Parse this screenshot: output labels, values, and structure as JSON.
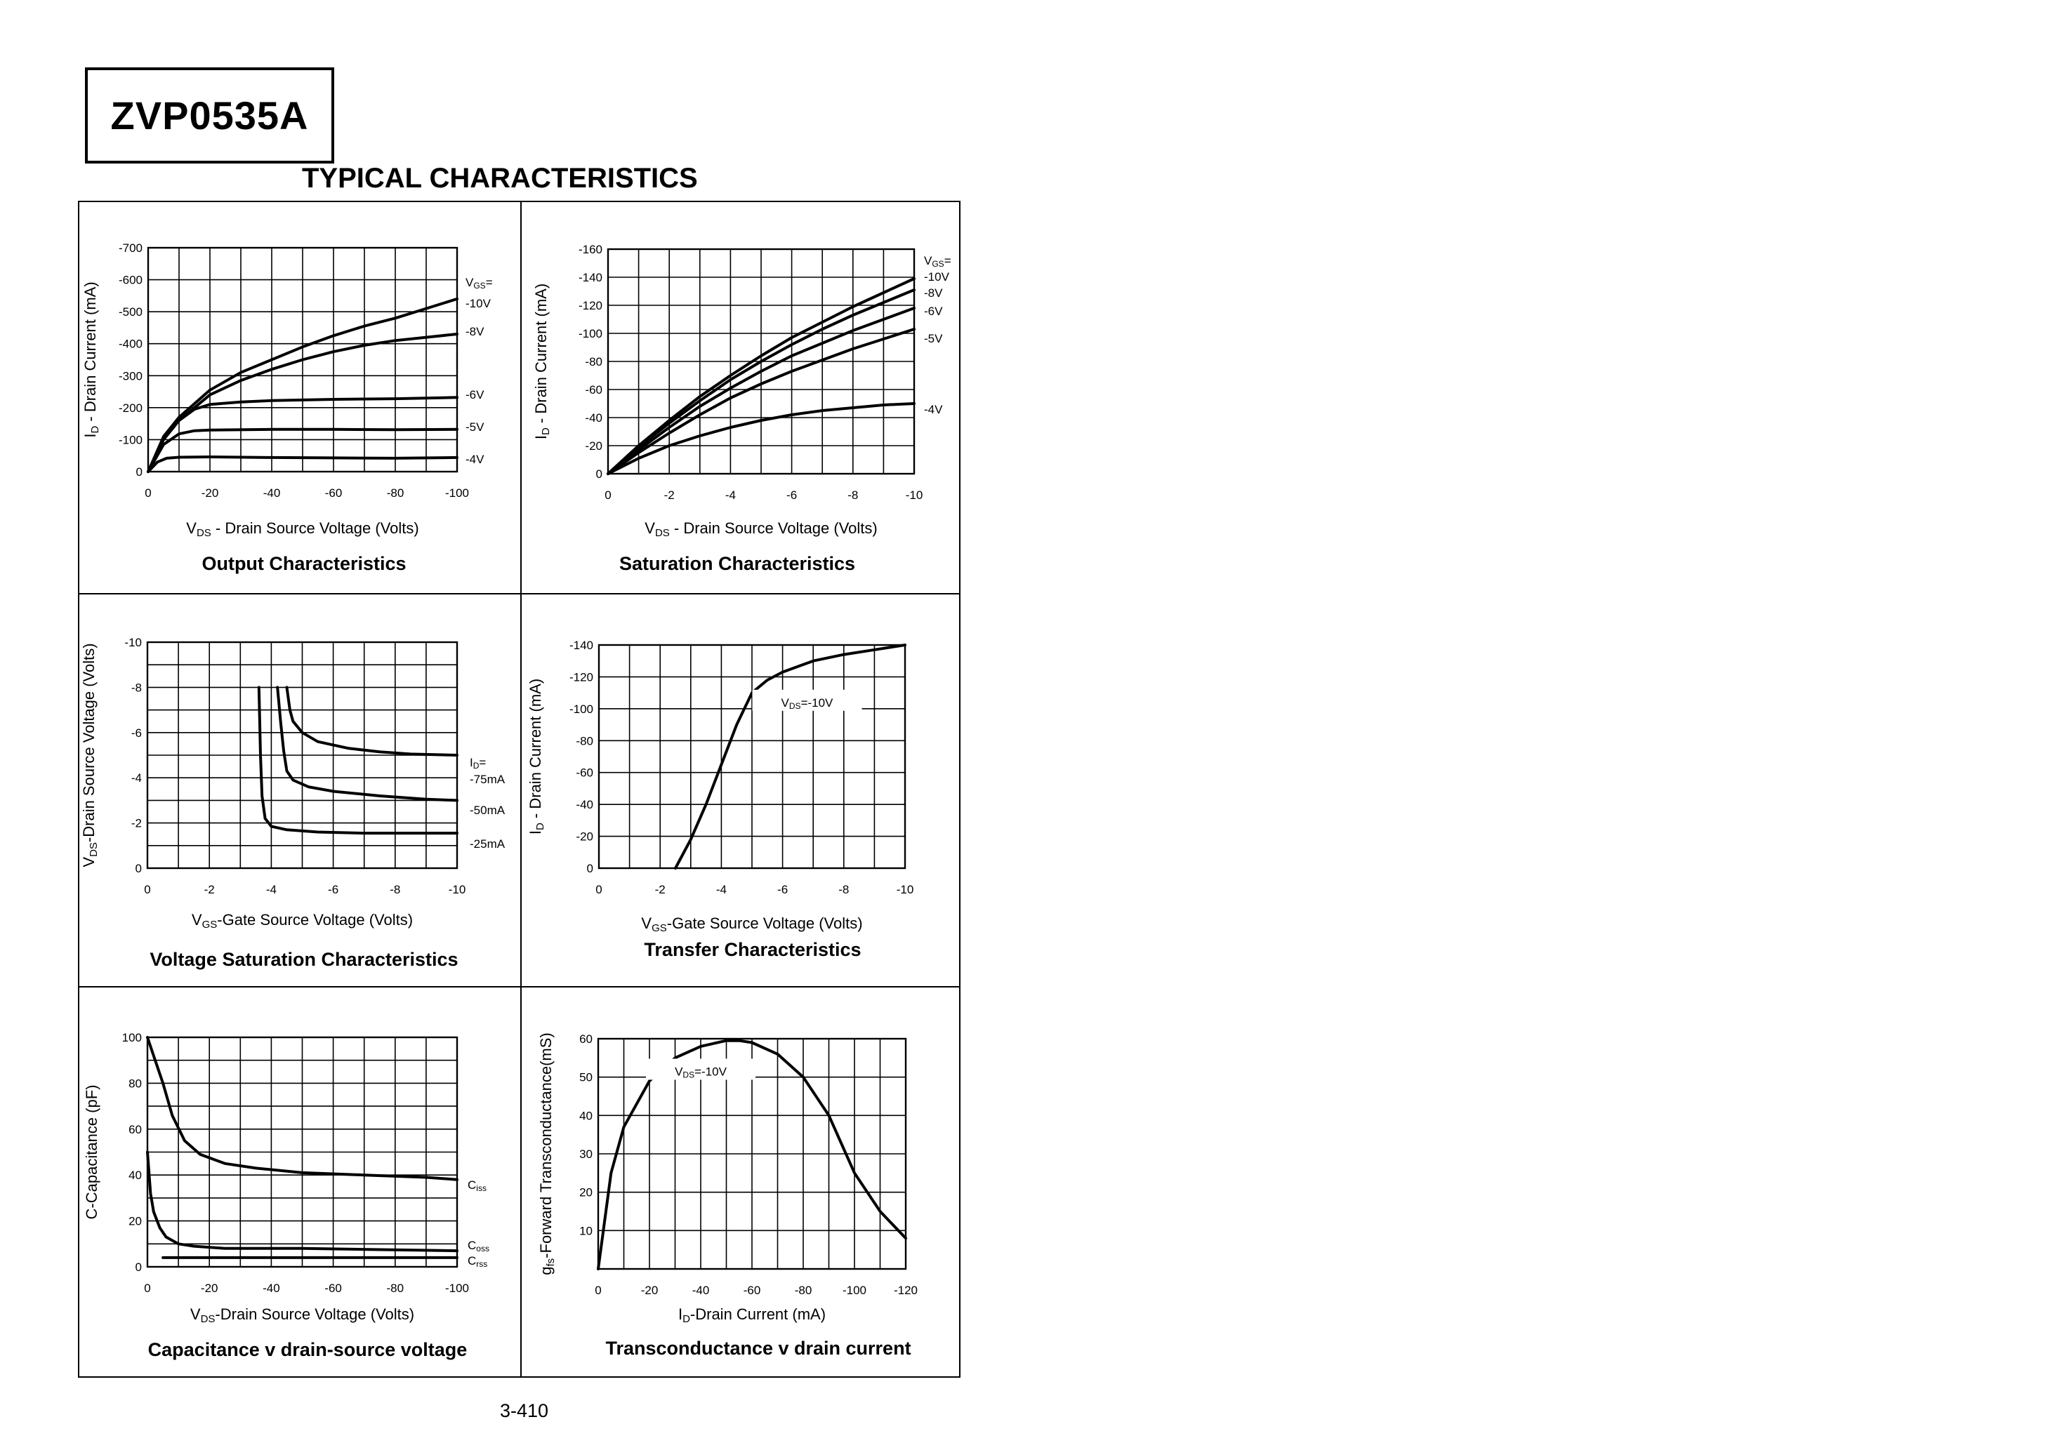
{
  "header": {
    "part_number": "ZVP0535A",
    "heading": "TYPICAL CHARACTERISTICS"
  },
  "footer": {
    "page_number": "3-410"
  },
  "chart_data": [
    {
      "id": "output",
      "type": "line",
      "caption": "Output Characteristics",
      "xlabel": "V",
      "xlabel_sub": "DS",
      "xlabel_rest": " - Drain Source Voltage (Volts)",
      "ylabel": "I",
      "ylabel_sub": "D",
      "ylabel_rest": " - Drain Current (mA)",
      "x_ticks": [
        0,
        -20,
        -40,
        -60,
        -80,
        -100
      ],
      "x_tick_labels": [
        "0",
        "-20",
        "-40",
        "-60",
        "-80",
        "-100"
      ],
      "y_ticks": [
        0,
        -100,
        -200,
        -300,
        -400,
        -500,
        -600,
        -700
      ],
      "y_tick_labels": [
        "0",
        "-100",
        "-200",
        "-300",
        "-400",
        "-500",
        "-600",
        "-700"
      ],
      "xlim": [
        0,
        -100
      ],
      "ylim": [
        0,
        -700
      ],
      "grid_x": 10,
      "grid_y": 7,
      "series": [
        {
          "name": "-10V",
          "x": [
            0,
            -5,
            -10,
            -20,
            -30,
            -40,
            -50,
            -60,
            -70,
            -80,
            -90,
            -100
          ],
          "y": [
            0,
            -110,
            -170,
            -255,
            -310,
            -350,
            -390,
            -425,
            -455,
            -480,
            -510,
            -540
          ]
        },
        {
          "name": "-8V",
          "x": [
            0,
            -5,
            -10,
            -20,
            -30,
            -40,
            -50,
            -60,
            -70,
            -80,
            -90,
            -100
          ],
          "y": [
            0,
            -105,
            -160,
            -240,
            -285,
            -320,
            -350,
            -375,
            -395,
            -410,
            -420,
            -430
          ]
        },
        {
          "name": "-6V",
          "x": [
            0,
            -5,
            -10,
            -15,
            -20,
            -30,
            -40,
            -60,
            -80,
            -100
          ],
          "y": [
            0,
            -100,
            -160,
            -195,
            -210,
            -218,
            -222,
            -226,
            -228,
            -232
          ]
        },
        {
          "name": "-5V",
          "x": [
            0,
            -5,
            -10,
            -15,
            -20,
            -40,
            -60,
            -80,
            -100
          ],
          "y": [
            0,
            -85,
            -118,
            -128,
            -130,
            -132,
            -132,
            -131,
            -132
          ]
        },
        {
          "name": "-4V",
          "x": [
            0,
            -3,
            -6,
            -10,
            -20,
            -40,
            -60,
            -80,
            -100
          ],
          "y": [
            0,
            -30,
            -42,
            -45,
            -46,
            -44,
            -43,
            -42,
            -44
          ]
        }
      ],
      "legend_title": "V",
      "legend_title_sub": "GS",
      "legend_title_rest": "="
    },
    {
      "id": "saturation",
      "type": "line",
      "caption": "Saturation Characteristics",
      "xlabel": "V",
      "xlabel_sub": "DS",
      "xlabel_rest": " - Drain Source Voltage (Volts)",
      "ylabel": "I",
      "ylabel_sub": "D",
      "ylabel_rest": " - Drain Current (mA)",
      "x_ticks": [
        0,
        -2,
        -4,
        -6,
        -8,
        -10
      ],
      "x_tick_labels": [
        "0",
        "-2",
        "-4",
        "-6",
        "-8",
        "-10"
      ],
      "y_ticks": [
        0,
        -20,
        -40,
        -60,
        -80,
        -100,
        -120,
        -140,
        -160
      ],
      "y_tick_labels": [
        "0",
        "-20",
        "-40",
        "-60",
        "-80",
        "-100",
        "-120",
        "-140",
        "-160"
      ],
      "xlim": [
        0,
        -10
      ],
      "ylim": [
        0,
        -160
      ],
      "grid_x": 10,
      "grid_y": 8,
      "series": [
        {
          "name": "-10V",
          "x": [
            0,
            -1,
            -2,
            -3,
            -4,
            -5,
            -6,
            -7,
            -8,
            -9,
            -10
          ],
          "y": [
            0,
            -20,
            -38,
            -55,
            -70,
            -84,
            -97,
            -108,
            -119,
            -129,
            -139
          ]
        },
        {
          "name": "-8V",
          "x": [
            0,
            -1,
            -2,
            -3,
            -4,
            -5,
            -6,
            -7,
            -8,
            -9,
            -10
          ],
          "y": [
            0,
            -19,
            -36,
            -52,
            -67,
            -80,
            -92,
            -103,
            -113,
            -122,
            -131
          ]
        },
        {
          "name": "-6V",
          "x": [
            0,
            -1,
            -2,
            -3,
            -4,
            -5,
            -6,
            -7,
            -8,
            -9,
            -10
          ],
          "y": [
            0,
            -17,
            -33,
            -48,
            -61,
            -73,
            -84,
            -93,
            -102,
            -110,
            -118
          ]
        },
        {
          "name": "-5V",
          "x": [
            0,
            -1,
            -2,
            -3,
            -4,
            -5,
            -6,
            -7,
            -8,
            -9,
            -10
          ],
          "y": [
            0,
            -15,
            -29,
            -42,
            -54,
            -64,
            -73,
            -81,
            -89,
            -96,
            -103
          ]
        },
        {
          "name": "-4V",
          "x": [
            0,
            -1,
            -2,
            -3,
            -4,
            -5,
            -6,
            -7,
            -8,
            -9,
            -10
          ],
          "y": [
            0,
            -11,
            -20,
            -27,
            -33,
            -38,
            -42,
            -45,
            -47,
            -49,
            -50
          ]
        }
      ],
      "legend_title": "V",
      "legend_title_sub": "GS",
      "legend_title_rest": "="
    },
    {
      "id": "voltage-saturation",
      "type": "line",
      "caption": "Voltage Saturation Characteristics",
      "xlabel": "V",
      "xlabel_sub": "GS",
      "xlabel_rest": "-Gate Source Voltage  (Volts)",
      "ylabel": "V",
      "ylabel_sub": "DS",
      "ylabel_rest": "-Drain Source  Voltage (Volts)",
      "x_ticks": [
        0,
        -2,
        -4,
        -6,
        -8,
        -10
      ],
      "x_tick_labels": [
        "0",
        "-2",
        "-4",
        "-6",
        "-8",
        "-10"
      ],
      "y_ticks": [
        0,
        -2,
        -4,
        -6,
        -8,
        -10
      ],
      "y_tick_labels": [
        "0",
        "-2",
        "-4",
        "-6",
        "-8",
        "-10"
      ],
      "xlim": [
        0,
        -10
      ],
      "ylim": [
        0,
        -10
      ],
      "grid_x": 10,
      "grid_y": 10,
      "series": [
        {
          "name": "-75mA",
          "x": [
            -4.5,
            -4.6,
            -4.7,
            -5.0,
            -5.5,
            -6.5,
            -7.5,
            -8.5,
            -10
          ],
          "y": [
            -8.0,
            -7.0,
            -6.5,
            -6.0,
            -5.6,
            -5.3,
            -5.15,
            -5.05,
            -5.0
          ]
        },
        {
          "name": "-50mA",
          "x": [
            -4.2,
            -4.3,
            -4.4,
            -4.5,
            -4.7,
            -5.2,
            -6.0,
            -7.5,
            -9.0,
            -10
          ],
          "y": [
            -8.0,
            -6.5,
            -5.2,
            -4.3,
            -3.9,
            -3.6,
            -3.4,
            -3.2,
            -3.05,
            -3.0
          ]
        },
        {
          "name": "-25mA",
          "x": [
            -3.6,
            -3.65,
            -3.7,
            -3.8,
            -4.0,
            -4.5,
            -5.5,
            -7.0,
            -8.5,
            -10
          ],
          "y": [
            -8.0,
            -5.0,
            -3.2,
            -2.2,
            -1.85,
            -1.7,
            -1.6,
            -1.55,
            -1.55,
            -1.55
          ]
        }
      ],
      "legend_title": "I",
      "legend_title_sub": "D",
      "legend_title_rest": "="
    },
    {
      "id": "transfer",
      "type": "line",
      "caption": "Transfer Characteristics",
      "xlabel": "V",
      "xlabel_sub": "GS",
      "xlabel_rest": "-Gate Source Voltage (Volts)",
      "ylabel": "I",
      "ylabel_sub": "D",
      "ylabel_rest": " - Drain Current (mA)",
      "x_ticks": [
        0,
        -2,
        -4,
        -6,
        -8,
        -10
      ],
      "x_tick_labels": [
        "0",
        "-2",
        "-4",
        "-6",
        "-8",
        "-10"
      ],
      "y_ticks": [
        0,
        -20,
        -40,
        -60,
        -80,
        -100,
        -120,
        -140
      ],
      "y_tick_labels": [
        "0",
        "-20",
        "-40",
        "-60",
        "-80",
        "-100",
        "-120",
        "-140"
      ],
      "xlim": [
        0,
        -10
      ],
      "ylim": [
        0,
        -140
      ],
      "grid_x": 10,
      "grid_y": 7,
      "series": [
        {
          "name": "",
          "x": [
            -2.5,
            -3.0,
            -3.5,
            -4.0,
            -4.5,
            -5.0,
            -5.5,
            -6.0,
            -7.0,
            -8.0,
            -9.0,
            -10
          ],
          "y": [
            0,
            -18,
            -40,
            -65,
            -90,
            -110,
            -118,
            -123,
            -130,
            -134,
            -137,
            -140
          ]
        }
      ],
      "annotation": {
        "label": "V",
        "sub": "DS",
        "rest": "=-10V",
        "x": -6.8,
        "y": -104
      }
    },
    {
      "id": "capacitance",
      "type": "line",
      "caption": "Capacitance v drain-source voltage",
      "xlabel": "V",
      "xlabel_sub": "DS",
      "xlabel_rest": "-Drain Source Voltage (Volts)",
      "ylabel": "C-Capacitance (pF)",
      "ylabel_sub": "",
      "ylabel_rest": "",
      "x_ticks": [
        0,
        -20,
        -40,
        -60,
        -80,
        -100
      ],
      "x_tick_labels": [
        "0",
        "-20",
        "-40",
        "-60",
        "-80",
        "-100"
      ],
      "y_ticks": [
        0,
        20,
        40,
        60,
        80,
        100
      ],
      "y_tick_labels": [
        "0",
        "20",
        "40",
        "60",
        "80",
        "100"
      ],
      "xlim": [
        0,
        -100
      ],
      "ylim": [
        0,
        100
      ],
      "grid_x": 10,
      "grid_y": 10,
      "series": [
        {
          "name": "C",
          "name_sub": "iss",
          "x": [
            0,
            -2,
            -5,
            -8,
            -12,
            -17,
            -25,
            -35,
            -50,
            -70,
            -90,
            -100
          ],
          "y": [
            100,
            92,
            80,
            66,
            55,
            49,
            45,
            43,
            41,
            40,
            39,
            38
          ]
        },
        {
          "name": "C",
          "name_sub": "oss",
          "x": [
            0,
            -1,
            -2,
            -4,
            -6,
            -10,
            -15,
            -25,
            -50,
            -75,
            -100
          ],
          "y": [
            50,
            32,
            24,
            17,
            13,
            10,
            9,
            8,
            8,
            7.5,
            7
          ]
        },
        {
          "name": "C",
          "name_sub": "rss",
          "x": [
            -5,
            -100
          ],
          "y": [
            4,
            4
          ]
        }
      ]
    },
    {
      "id": "transconductance",
      "type": "line",
      "caption": "Transconductance v drain current",
      "xlabel": "I",
      "xlabel_sub": "D",
      "xlabel_rest": "-Drain Current (mA)",
      "ylabel": "g",
      "ylabel_sub": "fs",
      "ylabel_rest": "-Forward Transconductance(mS)",
      "x_ticks": [
        0,
        -20,
        -40,
        -60,
        -80,
        -100,
        -120
      ],
      "x_tick_labels": [
        "0",
        "-20",
        "-40",
        "-60",
        "-80",
        "-100",
        "-120"
      ],
      "y_ticks": [
        0,
        10,
        20,
        30,
        40,
        50,
        60
      ],
      "y_tick_labels": [
        "",
        "10",
        "20",
        "30",
        "40",
        "50",
        "60"
      ],
      "xlim": [
        0,
        -120
      ],
      "ylim": [
        0,
        60
      ],
      "grid_x": 12,
      "grid_y": 6,
      "series": [
        {
          "name": "",
          "x": [
            0,
            -5,
            -10,
            -20,
            -30,
            -40,
            -50,
            -55,
            -60,
            -70,
            -80,
            -90,
            -100,
            -110,
            -120
          ],
          "y": [
            0,
            25,
            37,
            49,
            55,
            58,
            59.5,
            59.5,
            59,
            56,
            50,
            40,
            25,
            15,
            8
          ]
        }
      ],
      "annotation": {
        "label": "V",
        "sub": "DS",
        "rest": "=-10V",
        "x": -40,
        "y": 51.5
      }
    }
  ]
}
